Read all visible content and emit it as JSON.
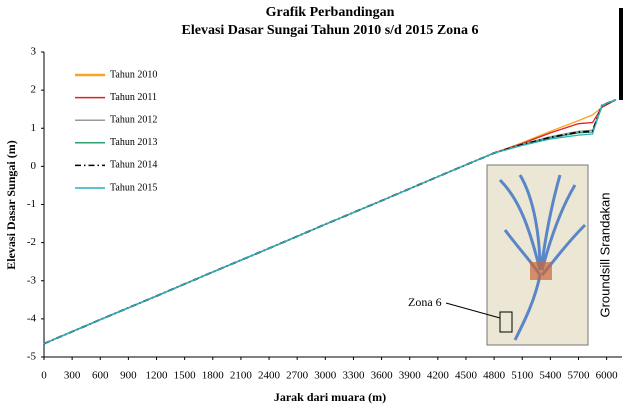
{
  "chart_data": {
    "type": "line",
    "title": "Grafik Perbandingan",
    "subtitle": "Elevasi Dasar Sungai Tahun 2010 s/d 2015 Zona 6",
    "x_label": "Jarak dari muara (m)",
    "y_label": "Elevasi Dasar Sungai (m)",
    "annotations": [
      "Groundsill Srandakan",
      "Zona 6"
    ],
    "x": [
      0,
      600,
      1200,
      1800,
      2400,
      3000,
      3600,
      4200,
      4800,
      5100,
      5400,
      5700,
      5850,
      5950,
      6100
    ],
    "series": [
      {
        "name": "Tahun 2010",
        "color": "#f5a623",
        "values": [
          -4.65,
          -4.02,
          -3.4,
          -2.77,
          -2.15,
          -1.52,
          -0.9,
          -0.27,
          0.35,
          0.62,
          0.92,
          1.2,
          1.35,
          1.55,
          1.75
        ]
      },
      {
        "name": "Tahun 2011",
        "color": "#e02020",
        "values": [
          -4.65,
          -4.02,
          -3.4,
          -2.77,
          -2.15,
          -1.52,
          -0.9,
          -0.27,
          0.35,
          0.6,
          0.88,
          1.12,
          1.15,
          1.55,
          1.75
        ]
      },
      {
        "name": "Tahun 2012",
        "color": "#9a9a9a",
        "values": [
          -4.65,
          -4.02,
          -3.4,
          -2.77,
          -2.15,
          -1.52,
          -0.9,
          -0.27,
          0.35,
          0.58,
          0.78,
          0.92,
          0.95,
          1.6,
          1.75
        ]
      },
      {
        "name": "Tahun 2013",
        "color": "#2e9e6e",
        "values": [
          -4.65,
          -4.02,
          -3.4,
          -2.77,
          -2.15,
          -1.52,
          -0.9,
          -0.27,
          0.35,
          0.56,
          0.75,
          0.88,
          0.9,
          1.6,
          1.75
        ]
      },
      {
        "name": "Tahun 2014",
        "color": "#000000",
        "linestyle": "dashdot",
        "values": [
          -4.65,
          -4.02,
          -3.4,
          -2.77,
          -2.15,
          -1.52,
          -0.9,
          -0.27,
          0.35,
          0.57,
          0.76,
          0.9,
          0.92,
          1.6,
          1.75
        ]
      },
      {
        "name": "Tahun 2015",
        "color": "#2ab0c0",
        "values": [
          -4.65,
          -4.02,
          -3.4,
          -2.77,
          -2.15,
          -1.52,
          -0.9,
          -0.27,
          0.35,
          0.55,
          0.72,
          0.82,
          0.85,
          1.6,
          1.75
        ]
      }
    ],
    "xlim": [
      0,
      6100
    ],
    "xticks": [
      0,
      300,
      600,
      900,
      1200,
      1500,
      1800,
      2100,
      2400,
      2700,
      3000,
      3300,
      3600,
      3900,
      4200,
      4500,
      4800,
      5100,
      5400,
      5700,
      6000
    ],
    "ylim": [
      -5,
      3
    ],
    "yticks": [
      -5,
      -4,
      -3,
      -2,
      -1,
      0,
      1,
      2,
      3
    ],
    "legend": "upper left"
  }
}
